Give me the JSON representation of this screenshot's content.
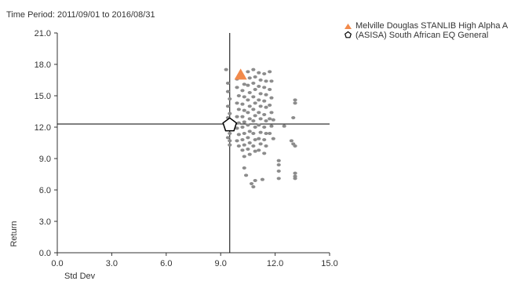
{
  "chart_data": {
    "type": "scatter",
    "subtitle": "Time Period: 2011/09/01 to 2016/08/31",
    "xlabel": "Std Dev",
    "ylabel": "Return",
    "xlim": [
      0,
      15
    ],
    "ylim": [
      0,
      21
    ],
    "xticks": [
      "0.0",
      "3.0",
      "6.0",
      "9.0",
      "12.0",
      "15.0"
    ],
    "yticks": [
      "0.0",
      "3.0",
      "6.0",
      "9.0",
      "12.0",
      "15.0",
      "18.0",
      "21.0"
    ],
    "grid": false,
    "legend_position": "top-right",
    "crosshair": {
      "x": 9.5,
      "y": 12.3
    },
    "series": [
      {
        "name": "Melville Douglas STANLIB High Alpha A",
        "marker": "triangle",
        "color": "#F28A4B",
        "points": [
          [
            10.1,
            17.0
          ]
        ]
      },
      {
        "name": "(ASISA) South African EQ General",
        "marker": "pentagon",
        "color": "#000000",
        "points": [
          [
            9.5,
            12.2
          ]
        ]
      },
      {
        "name": "",
        "marker": "dot",
        "color": "#8C8C8C",
        "points": [
          [
            9.3,
            17.5
          ],
          [
            9.4,
            16.2
          ],
          [
            9.4,
            15.4
          ],
          [
            9.5,
            14.7
          ],
          [
            9.4,
            14.0
          ],
          [
            9.5,
            13.3
          ],
          [
            9.4,
            12.9
          ],
          [
            9.5,
            12.6
          ],
          [
            9.4,
            11.8
          ],
          [
            9.5,
            11.4
          ],
          [
            9.4,
            11.0
          ],
          [
            9.5,
            10.7
          ],
          [
            9.5,
            10.3
          ],
          [
            9.9,
            16.6
          ],
          [
            9.9,
            15.8
          ],
          [
            10.0,
            15.0
          ],
          [
            9.9,
            14.3
          ],
          [
            10.0,
            13.7
          ],
          [
            9.9,
            13.0
          ],
          [
            10.0,
            12.4
          ],
          [
            9.9,
            11.9
          ],
          [
            10.0,
            11.3
          ],
          [
            9.9,
            10.7
          ],
          [
            10.0,
            10.2
          ],
          [
            10.2,
            16.9
          ],
          [
            10.3,
            16.1
          ],
          [
            10.2,
            15.5
          ],
          [
            10.3,
            14.9
          ],
          [
            10.2,
            14.2
          ],
          [
            10.3,
            13.6
          ],
          [
            10.2,
            13.0
          ],
          [
            10.3,
            12.5
          ],
          [
            10.2,
            12.0
          ],
          [
            10.3,
            11.4
          ],
          [
            10.2,
            10.8
          ],
          [
            10.3,
            10.3
          ],
          [
            10.2,
            9.8
          ],
          [
            10.3,
            9.2
          ],
          [
            10.3,
            8.1
          ],
          [
            10.4,
            7.4
          ],
          [
            10.5,
            17.3
          ],
          [
            10.6,
            16.7
          ],
          [
            10.5,
            16.0
          ],
          [
            10.6,
            15.3
          ],
          [
            10.5,
            14.6
          ],
          [
            10.6,
            14.0
          ],
          [
            10.5,
            13.4
          ],
          [
            10.6,
            12.8
          ],
          [
            10.5,
            12.2
          ],
          [
            10.6,
            11.6
          ],
          [
            10.5,
            11.0
          ],
          [
            10.6,
            10.5
          ],
          [
            10.5,
            9.9
          ],
          [
            10.6,
            9.4
          ],
          [
            10.7,
            6.6
          ],
          [
            10.8,
            6.3
          ],
          [
            10.8,
            17.5
          ],
          [
            10.9,
            16.8
          ],
          [
            10.8,
            16.2
          ],
          [
            10.9,
            15.6
          ],
          [
            10.8,
            14.9
          ],
          [
            10.9,
            14.3
          ],
          [
            10.8,
            13.7
          ],
          [
            10.9,
            13.1
          ],
          [
            10.8,
            12.6
          ],
          [
            10.9,
            12.0
          ],
          [
            10.8,
            11.4
          ],
          [
            10.9,
            10.8
          ],
          [
            10.8,
            10.2
          ],
          [
            10.9,
            9.7
          ],
          [
            10.9,
            6.9
          ],
          [
            11.1,
            17.2
          ],
          [
            11.2,
            16.5
          ],
          [
            11.1,
            15.9
          ],
          [
            11.2,
            15.2
          ],
          [
            11.1,
            14.6
          ],
          [
            11.2,
            14.0
          ],
          [
            11.1,
            13.4
          ],
          [
            11.2,
            12.8
          ],
          [
            11.1,
            12.2
          ],
          [
            11.2,
            11.5
          ],
          [
            11.1,
            10.9
          ],
          [
            11.2,
            10.4
          ],
          [
            11.1,
            9.8
          ],
          [
            11.3,
            7.0
          ],
          [
            11.4,
            17.1
          ],
          [
            11.5,
            16.4
          ],
          [
            11.4,
            15.8
          ],
          [
            11.5,
            15.1
          ],
          [
            11.4,
            14.5
          ],
          [
            11.5,
            13.9
          ],
          [
            11.4,
            13.2
          ],
          [
            11.5,
            12.6
          ],
          [
            11.4,
            12.0
          ],
          [
            11.5,
            11.4
          ],
          [
            11.4,
            10.8
          ],
          [
            11.5,
            10.2
          ],
          [
            11.4,
            9.5
          ],
          [
            11.7,
            17.3
          ],
          [
            11.8,
            16.4
          ],
          [
            11.7,
            15.6
          ],
          [
            11.8,
            14.8
          ],
          [
            11.7,
            14.1
          ],
          [
            11.8,
            13.4
          ],
          [
            11.7,
            12.8
          ],
          [
            11.8,
            12.1
          ],
          [
            11.7,
            11.4
          ],
          [
            11.9,
            12.7
          ],
          [
            11.9,
            10.9
          ],
          [
            12.2,
            8.8
          ],
          [
            12.2,
            8.4
          ],
          [
            12.2,
            7.8
          ],
          [
            12.2,
            7.1
          ],
          [
            12.5,
            12.1
          ],
          [
            12.9,
            10.7
          ],
          [
            13.0,
            10.4
          ],
          [
            13.1,
            10.2
          ],
          [
            13.0,
            12.9
          ],
          [
            13.1,
            14.6
          ],
          [
            13.1,
            14.3
          ],
          [
            13.1,
            7.6
          ],
          [
            13.1,
            7.3
          ],
          [
            13.1,
            7.1
          ]
        ]
      }
    ]
  }
}
